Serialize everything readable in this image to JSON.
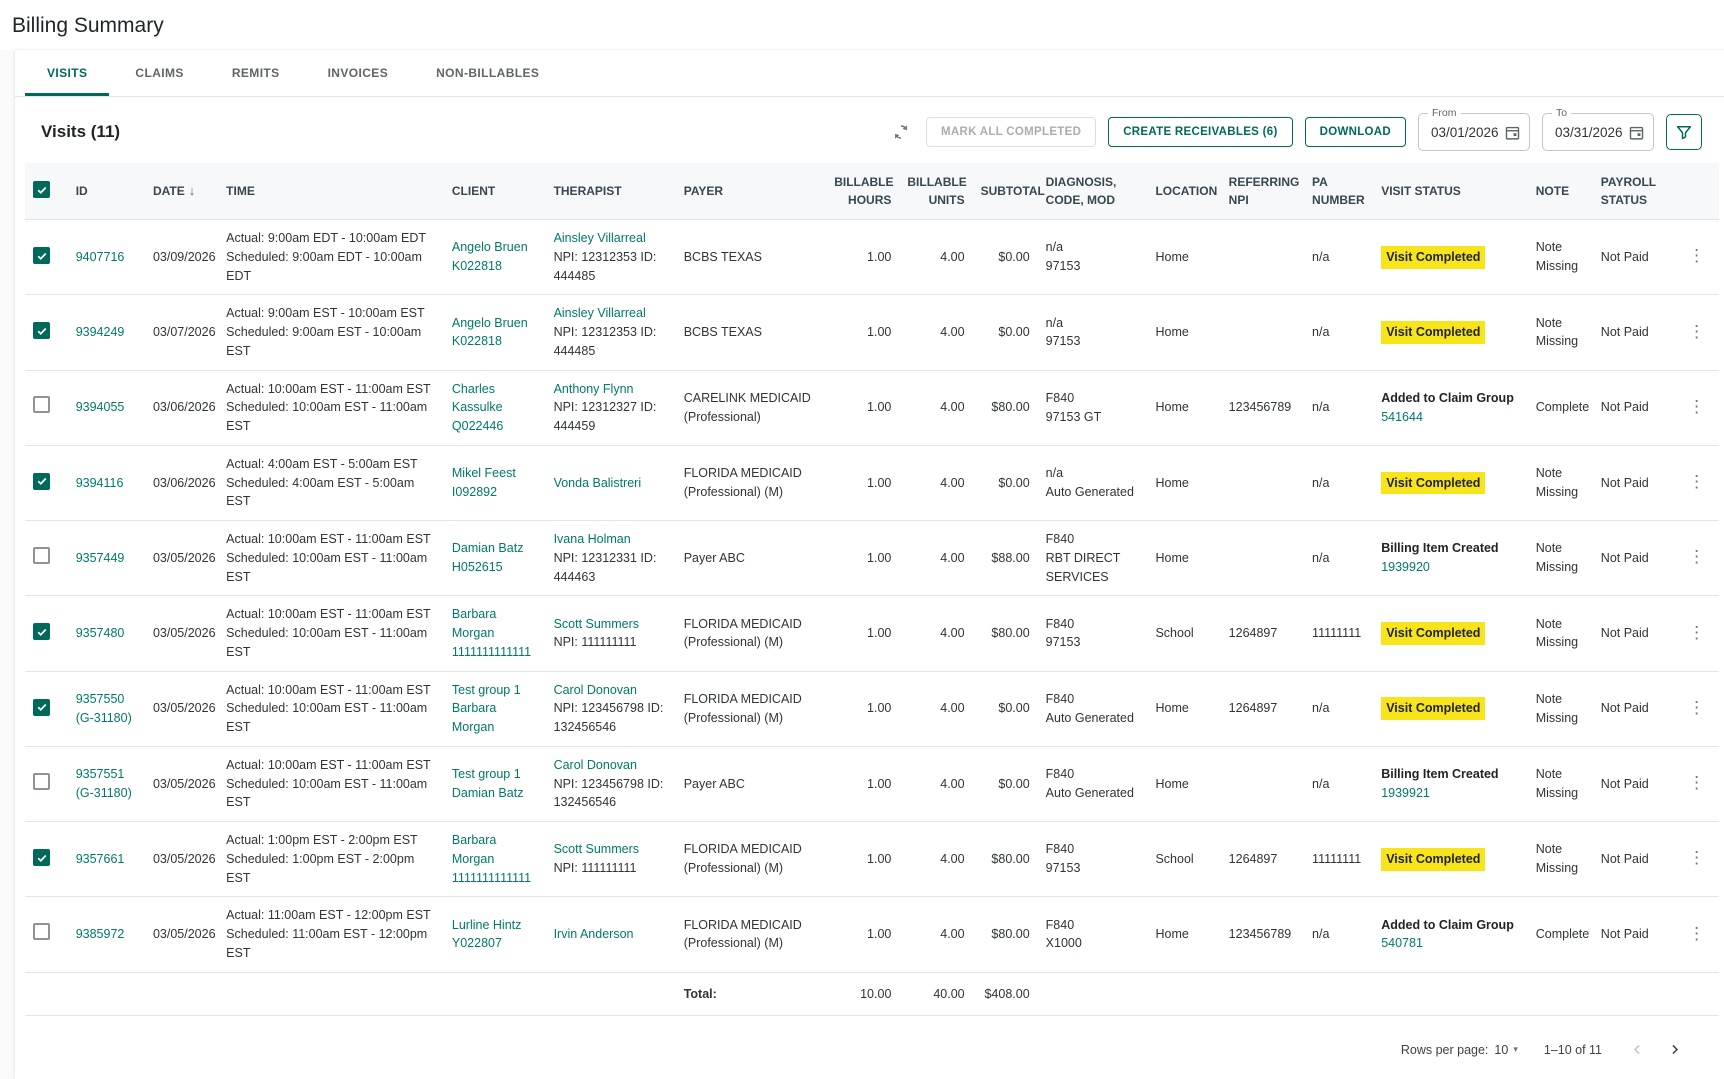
{
  "page": {
    "title": "Billing Summary"
  },
  "colors": {
    "accent": "#00796b",
    "accent_dark": "#00695c",
    "highlight_yellow": "#f7e41b"
  },
  "tabs": [
    {
      "label": "VISITS",
      "active": true
    },
    {
      "label": "CLAIMS",
      "active": false
    },
    {
      "label": "REMITS",
      "active": false
    },
    {
      "label": "INVOICES",
      "active": false
    },
    {
      "label": "NON-BILLABLES",
      "active": false
    }
  ],
  "toolbar": {
    "section_title": "Visits (11)",
    "mark_all_label": "MARK ALL COMPLETED",
    "create_receivables_label": "CREATE RECEIVABLES (6)",
    "download_label": "DOWNLOAD",
    "from": {
      "label": "From",
      "value": "03/01/2026"
    },
    "to": {
      "label": "To",
      "value": "03/31/2026"
    }
  },
  "table": {
    "columns": {
      "id": "ID",
      "date": "DATE",
      "time": "TIME",
      "client": "CLIENT",
      "therapist": "THERAPIST",
      "payer": "PAYER",
      "hours": "BILLABLE HOURS",
      "units": "BILLABLE UNITS",
      "subtotal": "SUBTOTAL",
      "diagnosis": "DIAGNOSIS, CODE, MOD",
      "location": "LOCATION",
      "referring_npi": "REFERRING NPI",
      "pa_number": "PA NUMBER",
      "visit_status": "VISIT STATUS",
      "note": "NOTE",
      "payroll": "PAYROLL STATUS"
    },
    "rows": [
      {
        "checked": true,
        "id": [
          "9407716"
        ],
        "date": "03/09/2026",
        "time": [
          "Actual: 9:00am EDT - 10:00am EDT",
          "Scheduled: 9:00am EDT - 10:00am EDT"
        ],
        "client": [
          "Angelo Bruen",
          "K022818"
        ],
        "therapist_name": "Ainsley Villarreal",
        "therapist_detail": "NPI: 12312353 ID: 444485",
        "payer": "BCBS TEXAS",
        "hours": "1.00",
        "units": "4.00",
        "subtotal": "$0.00",
        "diagnosis": [
          "n/a",
          "97153"
        ],
        "location": "Home",
        "referring_npi": "",
        "pa_number": "n/a",
        "status": {
          "type": "highlight",
          "text": "Visit Completed"
        },
        "note": "Note Missing",
        "payroll": "Not Paid"
      },
      {
        "checked": true,
        "id": [
          "9394249"
        ],
        "date": "03/07/2026",
        "time": [
          "Actual: 9:00am EST - 10:00am EST",
          "Scheduled: 9:00am EST - 10:00am EST"
        ],
        "client": [
          "Angelo Bruen",
          "K022818"
        ],
        "therapist_name": "Ainsley Villarreal",
        "therapist_detail": "NPI: 12312353 ID: 444485",
        "payer": "BCBS TEXAS",
        "hours": "1.00",
        "units": "4.00",
        "subtotal": "$0.00",
        "diagnosis": [
          "n/a",
          "97153"
        ],
        "location": "Home",
        "referring_npi": "",
        "pa_number": "n/a",
        "status": {
          "type": "highlight",
          "text": "Visit Completed"
        },
        "note": "Note Missing",
        "payroll": "Not Paid"
      },
      {
        "checked": false,
        "id": [
          "9394055"
        ],
        "date": "03/06/2026",
        "time": [
          "Actual: 10:00am EST - 11:00am EST",
          "Scheduled: 10:00am EST - 11:00am EST"
        ],
        "client": [
          "Charles Kassulke",
          "Q022446"
        ],
        "therapist_name": "Anthony Flynn",
        "therapist_detail": "NPI: 12312327 ID: 444459",
        "payer": "CARELINK MEDICAID (Professional)",
        "hours": "1.00",
        "units": "4.00",
        "subtotal": "$80.00",
        "diagnosis": [
          "F840",
          "97153 GT"
        ],
        "location": "Home",
        "referring_npi": "123456789",
        "pa_number": "n/a",
        "status": {
          "type": "link",
          "text": "Added to Claim Group",
          "link": "541644"
        },
        "note": "Complete",
        "payroll": "Not Paid"
      },
      {
        "checked": true,
        "id": [
          "9394116"
        ],
        "date": "03/06/2026",
        "time": [
          "Actual: 4:00am EST - 5:00am EST",
          "Scheduled: 4:00am EST - 5:00am EST"
        ],
        "client": [
          "Mikel Feest",
          "I092892"
        ],
        "therapist_name": "Vonda Balistreri",
        "therapist_detail": "",
        "payer": "FLORIDA MEDICAID (Professional) (M)",
        "hours": "1.00",
        "units": "4.00",
        "subtotal": "$0.00",
        "diagnosis": [
          "n/a",
          "Auto Generated"
        ],
        "location": "Home",
        "referring_npi": "",
        "pa_number": "n/a",
        "status": {
          "type": "highlight",
          "text": "Visit Completed"
        },
        "note": "Note Missing",
        "payroll": "Not Paid"
      },
      {
        "checked": false,
        "id": [
          "9357449"
        ],
        "date": "03/05/2026",
        "time": [
          "Actual: 10:00am EST - 11:00am EST",
          "Scheduled: 10:00am EST - 11:00am EST"
        ],
        "client": [
          "Damian Batz",
          "H052615"
        ],
        "therapist_name": "Ivana Holman",
        "therapist_detail": "NPI: 12312331 ID: 444463",
        "payer": "Payer ABC",
        "hours": "1.00",
        "units": "4.00",
        "subtotal": "$88.00",
        "diagnosis": [
          "F840",
          "RBT DIRECT SERVICES"
        ],
        "location": "Home",
        "referring_npi": "",
        "pa_number": "n/a",
        "status": {
          "type": "link",
          "text": "Billing Item Created",
          "link": "1939920"
        },
        "note": "Note Missing",
        "payroll": "Not Paid"
      },
      {
        "checked": true,
        "id": [
          "9357480"
        ],
        "date": "03/05/2026",
        "time": [
          "Actual: 10:00am EST - 11:00am EST",
          "Scheduled: 10:00am EST - 11:00am EST"
        ],
        "client": [
          "Barbara Morgan",
          "1111111111111"
        ],
        "therapist_name": "Scott Summers",
        "therapist_detail": "NPI: 111111111",
        "payer": "FLORIDA MEDICAID (Professional) (M)",
        "hours": "1.00",
        "units": "4.00",
        "subtotal": "$80.00",
        "diagnosis": [
          "F840",
          "97153"
        ],
        "location": "School",
        "referring_npi": "1264897",
        "pa_number": "11111111",
        "status": {
          "type": "highlight",
          "text": "Visit Completed"
        },
        "note": "Note Missing",
        "payroll": "Not Paid"
      },
      {
        "checked": true,
        "id": [
          "9357550",
          "(G-31180)"
        ],
        "date": "03/05/2026",
        "time": [
          "Actual: 10:00am EST - 11:00am EST",
          "Scheduled: 10:00am EST - 11:00am EST"
        ],
        "client": [
          "Test group 1",
          "Barbara Morgan"
        ],
        "therapist_name": "Carol Donovan",
        "therapist_detail": "NPI: 123456798 ID: 132456546",
        "payer": "FLORIDA MEDICAID (Professional) (M)",
        "hours": "1.00",
        "units": "4.00",
        "subtotal": "$0.00",
        "diagnosis": [
          "F840",
          "Auto Generated"
        ],
        "location": "Home",
        "referring_npi": "1264897",
        "pa_number": "n/a",
        "status": {
          "type": "highlight",
          "text": "Visit Completed"
        },
        "note": "Note Missing",
        "payroll": "Not Paid"
      },
      {
        "checked": false,
        "id": [
          "9357551",
          "(G-31180)"
        ],
        "date": "03/05/2026",
        "time": [
          "Actual: 10:00am EST - 11:00am EST",
          "Scheduled: 10:00am EST - 11:00am EST"
        ],
        "client": [
          "Test group 1",
          "Damian Batz"
        ],
        "therapist_name": "Carol Donovan",
        "therapist_detail": "NPI: 123456798 ID: 132456546",
        "payer": "Payer ABC",
        "hours": "1.00",
        "units": "4.00",
        "subtotal": "$0.00",
        "diagnosis": [
          "F840",
          "Auto Generated"
        ],
        "location": "Home",
        "referring_npi": "",
        "pa_number": "n/a",
        "status": {
          "type": "link",
          "text": "Billing Item Created",
          "link": "1939921"
        },
        "note": "Note Missing",
        "payroll": "Not Paid"
      },
      {
        "checked": true,
        "id": [
          "9357661"
        ],
        "date": "03/05/2026",
        "time": [
          "Actual: 1:00pm EST - 2:00pm EST",
          "Scheduled: 1:00pm EST - 2:00pm EST"
        ],
        "client": [
          "Barbara Morgan",
          "1111111111111"
        ],
        "therapist_name": "Scott Summers",
        "therapist_detail": "NPI: 111111111",
        "payer": "FLORIDA MEDICAID (Professional) (M)",
        "hours": "1.00",
        "units": "4.00",
        "subtotal": "$80.00",
        "diagnosis": [
          "F840",
          "97153"
        ],
        "location": "School",
        "referring_npi": "1264897",
        "pa_number": "11111111",
        "status": {
          "type": "highlight",
          "text": "Visit Completed"
        },
        "note": "Note Missing",
        "payroll": "Not Paid"
      },
      {
        "checked": false,
        "id": [
          "9385972"
        ],
        "date": "03/05/2026",
        "time": [
          "Actual: 11:00am EST - 12:00pm EST",
          "Scheduled: 11:00am EST - 12:00pm EST"
        ],
        "client": [
          "Lurline Hintz",
          "Y022807"
        ],
        "therapist_name": "Irvin Anderson",
        "therapist_detail": "",
        "payer": "FLORIDA MEDICAID (Professional) (M)",
        "hours": "1.00",
        "units": "4.00",
        "subtotal": "$80.00",
        "diagnosis": [
          "F840",
          "X1000"
        ],
        "location": "Home",
        "referring_npi": "123456789",
        "pa_number": "n/a",
        "status": {
          "type": "link",
          "text": "Added to Claim Group",
          "link": "540781"
        },
        "note": "Complete",
        "payroll": "Not Paid"
      }
    ],
    "total": {
      "label": "Total:",
      "hours": "10.00",
      "units": "40.00",
      "subtotal": "$408.00"
    }
  },
  "pagination": {
    "rows_per_page_label": "Rows per page:",
    "rows_per_page": "10",
    "range": "1–10 of 11"
  }
}
